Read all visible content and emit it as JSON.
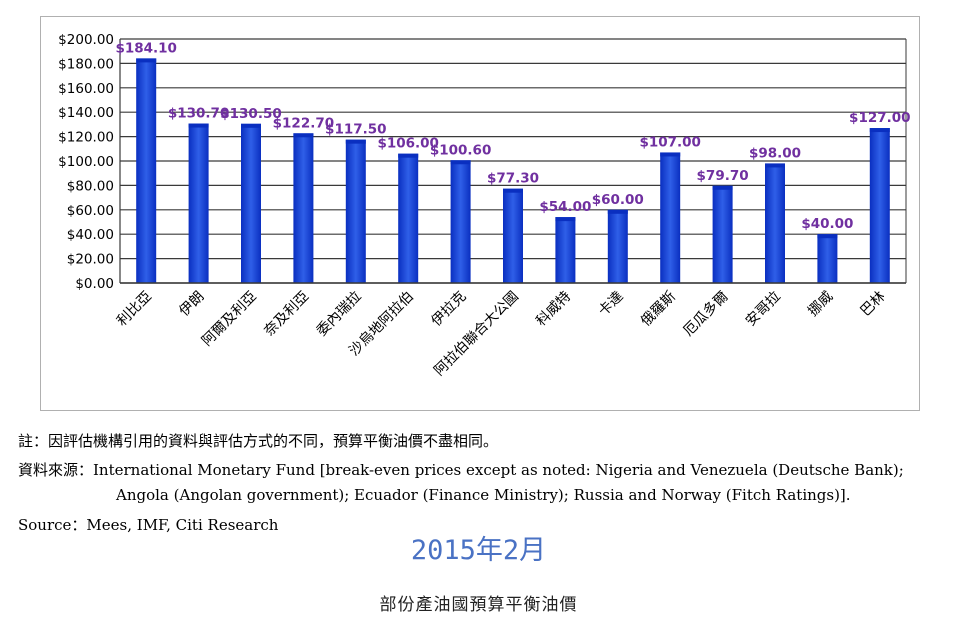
{
  "chart_data": {
    "type": "bar",
    "title": "",
    "xlabel": "",
    "ylabel": "",
    "ylim": [
      0,
      200
    ],
    "yticks": [
      "$0.00",
      "$20.00",
      "$40.00",
      "$60.00",
      "$80.00",
      "$100.00",
      "$120.00",
      "$140.00",
      "$160.00",
      "$180.00",
      "$200.00"
    ],
    "ytick_values": [
      0,
      20,
      40,
      60,
      80,
      100,
      120,
      140,
      160,
      180,
      200
    ],
    "grid": true,
    "legend": "none",
    "categories": [
      "利比亞",
      "伊朗",
      "阿爾及利亞",
      "奈及利亞",
      "委內瑞拉",
      "沙烏地阿拉伯",
      "伊拉克",
      "阿拉伯聯合大公國",
      "科威特",
      "卡達",
      "俄羅斯",
      "厄瓜多爾",
      "安哥拉",
      "挪威",
      "巴林"
    ],
    "values": [
      184.1,
      130.7,
      130.5,
      122.7,
      117.5,
      106.0,
      100.6,
      77.3,
      54.0,
      60.0,
      107.0,
      79.7,
      98.0,
      40.0,
      127.0
    ],
    "data_labels": [
      "$184.10",
      "$130.70",
      "$130.50",
      "$122.70",
      "$117.50",
      "$106.00",
      "$100.60",
      "$77.30",
      "$54.00",
      "$60.00",
      "$107.00",
      "$79.70",
      "$98.00",
      "$40.00",
      "$127.00"
    ],
    "colors": {
      "bar": "#2f5fe8",
      "bar_dark": "#0a2fc0",
      "data_label": "#7030a0"
    }
  },
  "notes": {
    "note": "註：因評估機構引用的資料與評估方式的不同，預算平衡油價不盡相同。",
    "source1": "資料來源：International Monetary Fund [break-even prices except as noted: Nigeria and Venezuela (Deutsche Bank);",
    "source1_cont": "Angola (Angolan government); Ecuador (Finance Ministry); Russia and Norway (Fitch Ratings)].",
    "source2": "Source：Mees, IMF, Citi Research"
  },
  "period": "2015年2月",
  "caption": "部份產油國預算平衡油價"
}
